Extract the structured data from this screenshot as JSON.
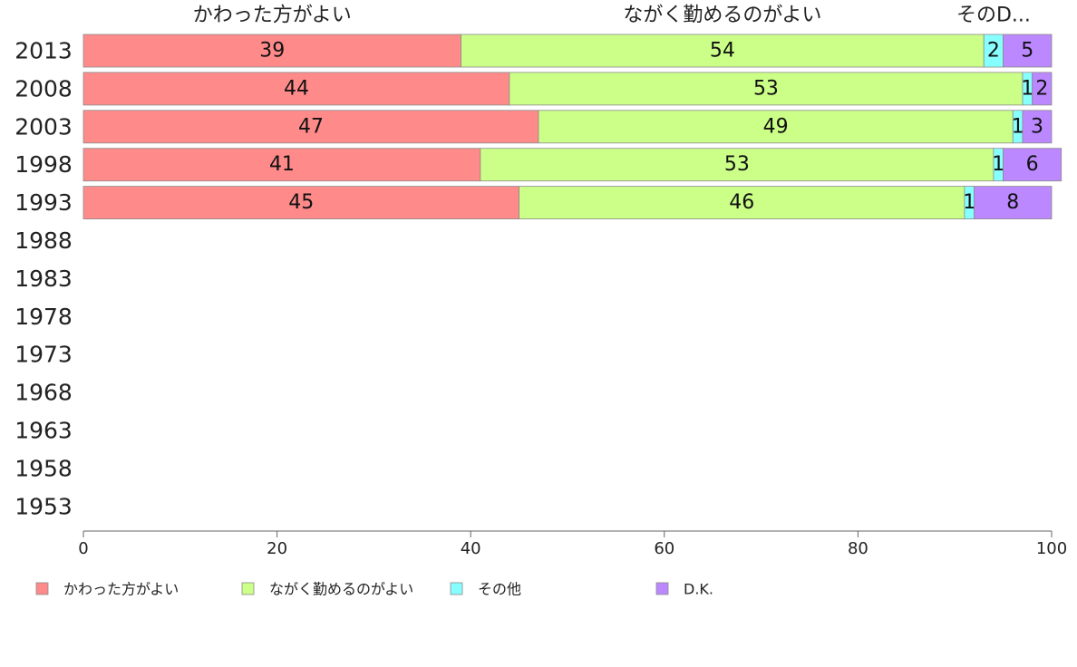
{
  "chart_data": {
    "type": "bar",
    "orientation": "horizontal",
    "stacked": true,
    "categories": [
      "2013",
      "2008",
      "2003",
      "1998",
      "1993",
      "1988",
      "1983",
      "1978",
      "1973",
      "1968",
      "1963",
      "1958",
      "1953"
    ],
    "series": [
      {
        "name": "かわった方がよい",
        "color": "#ff8a8a",
        "values": [
          39,
          44,
          47,
          41,
          45,
          null,
          null,
          null,
          null,
          null,
          null,
          null,
          null
        ]
      },
      {
        "name": "ながく勤めるのがよい",
        "color": "#ccff88",
        "values": [
          54,
          53,
          49,
          53,
          46,
          null,
          null,
          null,
          null,
          null,
          null,
          null,
          null
        ]
      },
      {
        "name": "その他",
        "color": "#88ffff",
        "values": [
          2,
          1,
          1,
          1,
          1,
          null,
          null,
          null,
          null,
          null,
          null,
          null,
          null
        ]
      },
      {
        "name": "D.K.",
        "color": "#bb88ff",
        "values": [
          5,
          2,
          3,
          6,
          8,
          null,
          null,
          null,
          null,
          null,
          null,
          null,
          null
        ]
      }
    ],
    "top_labels": [
      "かわった方がよい",
      "ながく勤めるのがよい",
      "そのD..."
    ],
    "xlim": [
      0,
      100
    ],
    "xticks": [
      0,
      20,
      40,
      60,
      80,
      100
    ],
    "grid": false,
    "legend": "bottom",
    "title": "",
    "xlabel": "",
    "ylabel": ""
  }
}
